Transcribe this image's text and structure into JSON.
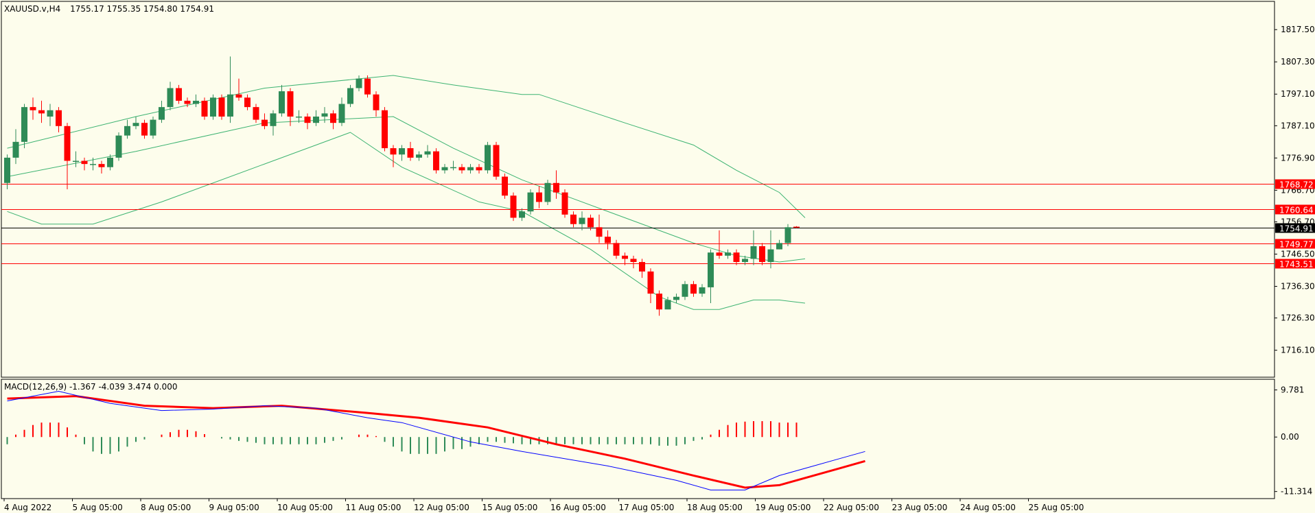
{
  "header": {
    "symbol": "XAUUSD.v,H4",
    "ohlc": "1755.17 1755.35 1754.80 1754.91"
  },
  "macd_header": "MACD(12,26,9) -1.367 -4.039 3.474 0.000",
  "colors": {
    "background": "#fdfdec",
    "bull": "#2e8b57",
    "bear": "#ff0000",
    "bands": "#3cb371",
    "level": "#ff0000",
    "macd_main": "#0000ff",
    "macd_signal": "#ff0000"
  },
  "chart_data": [
    {
      "type": "candlestick",
      "title": "",
      "ylim": [
        1708.0,
        1826.0
      ],
      "yticks": [
        "1817.50",
        "1807.30",
        "1797.10",
        "1787.10",
        "1776.90",
        "1766.70",
        "1756.70",
        "1746.50",
        "1736.30",
        "1726.30",
        "1716.10"
      ],
      "xticks": [
        "4 Aug 2022",
        "5 Aug 05:00",
        "8 Aug 05:00",
        "9 Aug 05:00",
        "10 Aug 05:00",
        "11 Aug 05:00",
        "12 Aug 05:00",
        "15 Aug 05:00",
        "16 Aug 05:00",
        "17 Aug 05:00",
        "18 Aug 05:00",
        "19 Aug 05:00",
        "22 Aug 05:00",
        "23 Aug 05:00",
        "24 Aug 05:00",
        "25 Aug 05:00"
      ],
      "current_price": "1754.91",
      "levels": [
        "1768.72",
        "1760.64",
        "1749.77",
        "1743.51"
      ],
      "candles": [
        [
          1769,
          1777,
          1767,
          1778
        ],
        [
          1777,
          1782,
          1775,
          1786
        ],
        [
          1782,
          1793,
          1780,
          1794
        ],
        [
          1793,
          1792,
          1789,
          1796
        ],
        [
          1792,
          1791,
          1788,
          1795
        ],
        [
          1790,
          1792,
          1787,
          1794
        ],
        [
          1792,
          1787,
          1785,
          1793
        ],
        [
          1787,
          1776,
          1767,
          1788
        ],
        [
          1776,
          1776,
          1774,
          1779
        ],
        [
          1776,
          1775,
          1773,
          1777
        ],
        [
          1775,
          1775,
          1773,
          1777
        ],
        [
          1775,
          1774,
          1772,
          1776
        ],
        [
          1774,
          1777,
          1773,
          1778
        ],
        [
          1777,
          1784,
          1776,
          1785
        ],
        [
          1784,
          1787,
          1783,
          1789
        ],
        [
          1787,
          1788,
          1786,
          1790
        ],
        [
          1788,
          1784,
          1783,
          1789
        ],
        [
          1784,
          1789,
          1783,
          1790
        ],
        [
          1789,
          1793,
          1788,
          1795
        ],
        [
          1793,
          1799,
          1792,
          1801
        ],
        [
          1799,
          1795,
          1794,
          1800
        ],
        [
          1795,
          1794,
          1793,
          1796
        ],
        [
          1794,
          1795,
          1793,
          1797
        ],
        [
          1795,
          1790,
          1789,
          1796
        ],
        [
          1790,
          1796,
          1789,
          1797
        ],
        [
          1796,
          1790,
          1789,
          1797
        ],
        [
          1790,
          1797,
          1788,
          1809
        ],
        [
          1797,
          1796,
          1795,
          1802
        ],
        [
          1796,
          1793,
          1792,
          1797
        ],
        [
          1793,
          1789,
          1788,
          1794
        ],
        [
          1789,
          1787,
          1786,
          1791
        ],
        [
          1787,
          1791,
          1784,
          1792
        ],
        [
          1791,
          1798,
          1790,
          1800
        ],
        [
          1798,
          1790,
          1787,
          1799
        ],
        [
          1790,
          1790,
          1788,
          1792
        ],
        [
          1790,
          1788,
          1786,
          1791
        ],
        [
          1788,
          1790,
          1787,
          1792
        ],
        [
          1790,
          1791,
          1788,
          1793
        ],
        [
          1791,
          1788,
          1786,
          1792
        ],
        [
          1788,
          1794,
          1787,
          1796
        ],
        [
          1794,
          1799,
          1793,
          1800
        ],
        [
          1799,
          1802,
          1798,
          1803
        ],
        [
          1802,
          1797,
          1796,
          1803
        ],
        [
          1797,
          1792,
          1790,
          1798
        ],
        [
          1792,
          1780,
          1779,
          1793
        ],
        [
          1780,
          1778,
          1774,
          1781
        ],
        [
          1778,
          1780,
          1776,
          1781
        ],
        [
          1780,
          1777,
          1776,
          1782
        ],
        [
          1777,
          1778,
          1776,
          1779
        ],
        [
          1778,
          1779,
          1777,
          1781
        ],
        [
          1779,
          1773,
          1772,
          1780
        ],
        [
          1773,
          1774,
          1772,
          1775
        ],
        [
          1774,
          1774,
          1773,
          1776
        ],
        [
          1774,
          1773,
          1772,
          1775
        ],
        [
          1773,
          1774,
          1772,
          1775
        ],
        [
          1774,
          1773,
          1772,
          1775
        ],
        [
          1773,
          1781,
          1772,
          1782
        ],
        [
          1781,
          1771,
          1770,
          1782
        ],
        [
          1771,
          1765,
          1764,
          1772
        ],
        [
          1765,
          1758,
          1757,
          1766
        ],
        [
          1758,
          1760,
          1757,
          1761
        ],
        [
          1760,
          1766,
          1759,
          1767
        ],
        [
          1766,
          1763,
          1761,
          1768
        ],
        [
          1763,
          1769,
          1762,
          1770
        ],
        [
          1769,
          1766,
          1764,
          1773
        ],
        [
          1766,
          1759,
          1758,
          1767
        ],
        [
          1759,
          1756,
          1755,
          1760
        ],
        [
          1756,
          1758,
          1754,
          1760
        ],
        [
          1758,
          1755,
          1754,
          1759
        ],
        [
          1755,
          1752,
          1750,
          1759
        ],
        [
          1752,
          1750,
          1748,
          1754
        ],
        [
          1750,
          1746,
          1745,
          1751
        ],
        [
          1746,
          1745,
          1743,
          1747
        ],
        [
          1745,
          1744,
          1742,
          1746
        ],
        [
          1744,
          1741,
          1739,
          1745
        ],
        [
          1741,
          1734,
          1731,
          1742
        ],
        [
          1734,
          1729,
          1727,
          1735
        ],
        [
          1729,
          1732,
          1730,
          1733
        ],
        [
          1732,
          1733,
          1731,
          1734
        ],
        [
          1733,
          1737,
          1732,
          1738
        ],
        [
          1737,
          1734,
          1733,
          1738
        ],
        [
          1734,
          1736,
          1733,
          1737
        ],
        [
          1736,
          1747,
          1731,
          1748
        ],
        [
          1747,
          1746,
          1745,
          1754
        ],
        [
          1746,
          1747,
          1745,
          1748
        ],
        [
          1747,
          1744,
          1743,
          1748
        ],
        [
          1744,
          1745,
          1743,
          1746
        ],
        [
          1745,
          1749,
          1743,
          1754
        ],
        [
          1749,
          1744,
          1743,
          1750
        ],
        [
          1744,
          1748,
          1742,
          1754
        ],
        [
          1748,
          1750,
          1748,
          1751
        ],
        [
          1750,
          1755,
          1749,
          1756
        ],
        [
          1755.17,
          1754.91,
          1754.8,
          1755.35
        ]
      ],
      "bollinger": {
        "upper": [
          [
            0,
            1780
          ],
          [
            15,
            1790
          ],
          [
            30,
            1799
          ],
          [
            45,
            1803
          ],
          [
            52,
            1800
          ],
          [
            60,
            1797
          ],
          [
            62,
            1797
          ],
          [
            72,
            1788
          ],
          [
            80,
            1781
          ],
          [
            85,
            1773
          ],
          [
            90,
            1766
          ],
          [
            93,
            1758
          ]
        ],
        "middle": [
          [
            0,
            1771
          ],
          [
            15,
            1779
          ],
          [
            30,
            1788
          ],
          [
            45,
            1790
          ],
          [
            52,
            1780
          ],
          [
            60,
            1770
          ],
          [
            65,
            1765
          ],
          [
            72,
            1758
          ],
          [
            80,
            1750
          ],
          [
            85,
            1746
          ],
          [
            90,
            1744
          ],
          [
            93,
            1745
          ]
        ],
        "lower": [
          [
            0,
            1760
          ],
          [
            4,
            1756
          ],
          [
            10,
            1756
          ],
          [
            18,
            1763
          ],
          [
            30,
            1775
          ],
          [
            40,
            1785
          ],
          [
            46,
            1774
          ],
          [
            55,
            1763
          ],
          [
            60,
            1760
          ],
          [
            68,
            1748
          ],
          [
            76,
            1733
          ],
          [
            80,
            1729
          ],
          [
            83,
            1729
          ],
          [
            87,
            1732
          ],
          [
            90,
            1732
          ],
          [
            93,
            1731
          ]
        ]
      }
    },
    {
      "type": "macd",
      "ylim": [
        -12.5,
        11.0
      ],
      "yticks": [
        "9.781",
        "0.00",
        "-11.314"
      ],
      "histogram": [
        -1.5,
        0.5,
        1.5,
        2.5,
        3.0,
        3.0,
        3.0,
        2.0,
        0.5,
        -1.5,
        -3.0,
        -3.5,
        -3.5,
        -3.0,
        -2.0,
        -1.0,
        -0.5,
        0.0,
        0.5,
        1.0,
        1.5,
        1.5,
        1.2,
        0.6,
        0.0,
        -0.3,
        -0.5,
        -0.8,
        -1.0,
        -1.2,
        -1.5,
        -1.5,
        -1.5,
        -1.5,
        -1.5,
        -1.5,
        -1.5,
        -1.2,
        -0.8,
        -0.5,
        0.0,
        0.5,
        0.5,
        0.2,
        -1.0,
        -2.0,
        -3.0,
        -3.5,
        -3.5,
        -3.5,
        -3.5,
        -3.0,
        -2.5,
        -2.5,
        -2.0,
        -1.5,
        -1.0,
        -1.0,
        -1.2,
        -1.3,
        -1.5,
        -1.5,
        -1.5,
        -1.5,
        -1.5,
        -1.5,
        -1.5,
        -1.5,
        -1.5,
        -1.5,
        -1.5,
        -1.5,
        -1.5,
        -1.5,
        -1.5,
        -1.5,
        -1.8,
        -1.8,
        -1.8,
        -1.5,
        -0.8,
        -0.5,
        0.5,
        1.5,
        2.5,
        3.0,
        3.2,
        3.3,
        3.3,
        3.3,
        3.0,
        3.0,
        3.0
      ],
      "main": [
        [
          0,
          7.5
        ],
        [
          6,
          9.5
        ],
        [
          12,
          7
        ],
        [
          18,
          5.5
        ],
        [
          24,
          5.8
        ],
        [
          30,
          6.5
        ],
        [
          36,
          6
        ],
        [
          42,
          4
        ],
        [
          44,
          3.5
        ],
        [
          46,
          3
        ],
        [
          54,
          -1
        ],
        [
          60,
          -3
        ],
        [
          70,
          -6
        ],
        [
          78,
          -9
        ],
        [
          82,
          -11
        ],
        [
          86,
          -11
        ],
        [
          90,
          -8
        ],
        [
          94,
          -6
        ],
        [
          97,
          -4.5
        ],
        [
          100,
          -3
        ]
      ],
      "signal": [
        [
          0,
          8
        ],
        [
          8,
          8.5
        ],
        [
          16,
          6.5
        ],
        [
          24,
          6
        ],
        [
          32,
          6.5
        ],
        [
          42,
          5
        ],
        [
          48,
          4
        ],
        [
          56,
          2
        ],
        [
          64,
          -1.5
        ],
        [
          72,
          -4.5
        ],
        [
          80,
          -8
        ],
        [
          86,
          -10.5
        ],
        [
          90,
          -10
        ],
        [
          94,
          -8
        ],
        [
          97,
          -6.5
        ],
        [
          100,
          -5
        ]
      ]
    }
  ]
}
